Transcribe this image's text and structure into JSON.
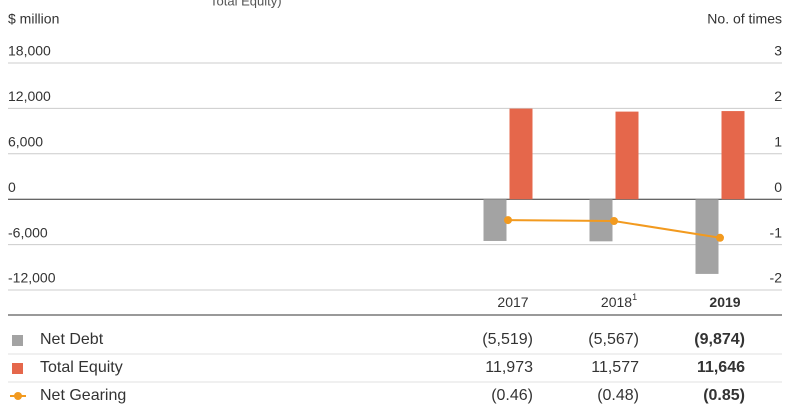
{
  "chart_data": {
    "type": "bar",
    "title": "Total Equity)",
    "y_label": "$ million",
    "y2_label": "No. of times",
    "categories": [
      "2017",
      "2018",
      "2019"
    ],
    "superscripts": [
      {
        "category": "2018",
        "mark": "1"
      }
    ],
    "bold_categories": [
      false,
      false,
      true
    ],
    "ylim": [
      -12000,
      18000
    ],
    "yticks": [
      {
        "value": 18000,
        "label": "18,000"
      },
      {
        "value": 12000,
        "label": "12,000"
      },
      {
        "value": 6000,
        "label": "6,000"
      },
      0,
      {
        "value": -6000,
        "label": "-6,000"
      },
      {
        "value": -12000,
        "label": "-12,000"
      }
    ],
    "y2lim": [
      -2,
      3
    ],
    "y2ticks": [
      3,
      2,
      1,
      0,
      -1,
      -2
    ],
    "grid": true,
    "series": [
      {
        "name": "Net Debt",
        "type": "bar",
        "color": "#a3a3a3",
        "values": [
          -5519,
          -5567,
          -9874
        ],
        "value_labels": [
          "(5,519)",
          "(5,567)",
          "(9,874)"
        ]
      },
      {
        "name": "Total Equity",
        "type": "bar",
        "color": "#e5674b",
        "values": [
          11973,
          11577,
          11646
        ],
        "value_labels": [
          "11,973",
          "11,577",
          "11,646"
        ]
      },
      {
        "name": "Net Gearing",
        "type": "line",
        "axis": "y2",
        "color": "#f29a1f",
        "values": [
          -0.46,
          -0.48,
          -0.85
        ],
        "value_labels": [
          "(0.46)",
          "(0.48)",
          "(0.85)"
        ]
      }
    ]
  }
}
